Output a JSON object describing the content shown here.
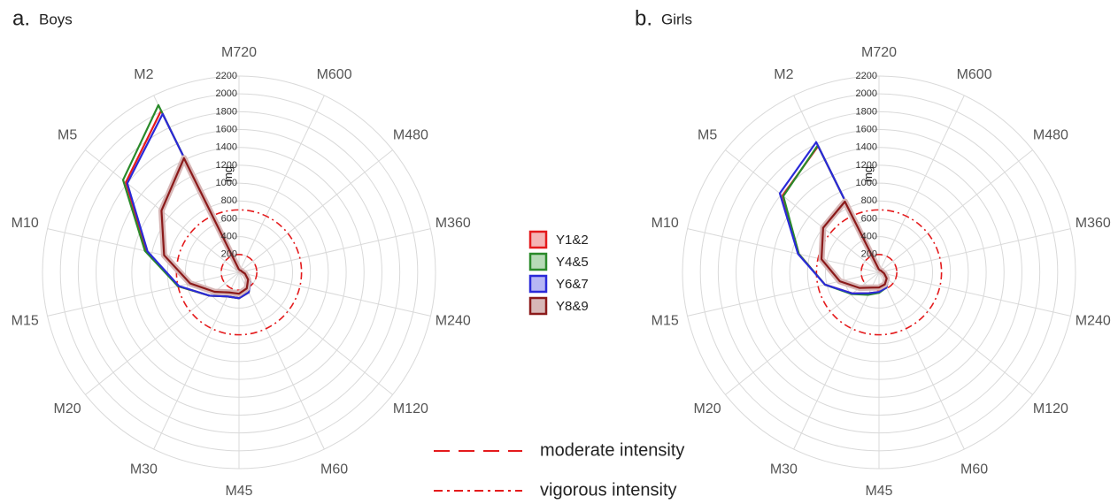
{
  "chart_data": [
    {
      "type": "radar",
      "panel": "a.",
      "title": "Boys",
      "unit": "mg",
      "categories": [
        "M720",
        "M600",
        "M480",
        "M360",
        "M240",
        "M120",
        "M60",
        "M45",
        "M30",
        "M20",
        "M15",
        "M10",
        "M5",
        "M2"
      ],
      "rlim": [
        0,
        2200
      ],
      "ticks": [
        200,
        400,
        600,
        800,
        1000,
        1200,
        1400,
        1600,
        1800,
        2000,
        2200
      ],
      "grid": true,
      "series": [
        {
          "name": "Y1&2",
          "color": "#e41a1c",
          "values": [
            30,
            28,
            35,
            40,
            80,
            160,
            250,
            290,
            300,
            420,
            700,
            1060,
            1620,
            2010
          ]
        },
        {
          "name": "Y4&5",
          "color": "#2a8a2a",
          "values": [
            30,
            28,
            35,
            40,
            80,
            160,
            250,
            290,
            300,
            420,
            700,
            1080,
            1660,
            2080
          ]
        },
        {
          "name": "Y6&7",
          "color": "#2a2ad8",
          "values": [
            30,
            28,
            35,
            40,
            80,
            160,
            250,
            290,
            300,
            420,
            690,
            1050,
            1600,
            1970
          ]
        },
        {
          "name": "Y8&9",
          "color": "#8b1a1a",
          "values": [
            30,
            25,
            30,
            35,
            70,
            130,
            200,
            240,
            250,
            350,
            560,
            860,
            1110,
            1420
          ]
        }
      ],
      "reference_lines": [
        {
          "name": "moderate intensity",
          "value": 200,
          "style": "dashed"
        },
        {
          "name": "vigorous intensity",
          "value": 700,
          "style": "dashdot"
        }
      ]
    },
    {
      "type": "radar",
      "panel": "b.",
      "title": "Girls",
      "unit": "mg",
      "categories": [
        "M720",
        "M600",
        "M480",
        "M360",
        "M240",
        "M120",
        "M60",
        "M45",
        "M30",
        "M20",
        "M15",
        "M10",
        "M5",
        "M2"
      ],
      "rlim": [
        0,
        2200
      ],
      "ticks": [
        200,
        400,
        600,
        800,
        1000,
        1200,
        1400,
        1600,
        1800,
        2000,
        2200
      ],
      "grid": true,
      "series": [
        {
          "name": "Y1&2",
          "color": "#e41a1c",
          "values": [
            30,
            28,
            35,
            40,
            80,
            130,
            190,
            220,
            260,
            380,
            620,
            920,
            1380,
            1570
          ]
        },
        {
          "name": "Y4&5",
          "color": "#2a8a2a",
          "values": [
            30,
            28,
            35,
            40,
            80,
            130,
            190,
            230,
            280,
            390,
            620,
            920,
            1370,
            1580
          ]
        },
        {
          "name": "Y6&7",
          "color": "#2a2ad8",
          "values": [
            30,
            28,
            35,
            40,
            80,
            130,
            190,
            220,
            260,
            380,
            620,
            930,
            1420,
            1620
          ]
        },
        {
          "name": "Y8&9",
          "color": "#8b1a1a",
          "values": [
            30,
            25,
            30,
            35,
            60,
            110,
            150,
            170,
            190,
            280,
            450,
            660,
            800,
            880
          ]
        }
      ],
      "reference_lines": [
        {
          "name": "moderate intensity",
          "value": 200,
          "style": "dashed"
        },
        {
          "name": "vigorous intensity",
          "value": 700,
          "style": "dashdot"
        }
      ]
    }
  ],
  "legend": {
    "items": [
      {
        "label": "Y1&2",
        "color": "#e41a1c",
        "fill": "#f4b4b4"
      },
      {
        "label": "Y4&5",
        "color": "#2a8a2a",
        "fill": "#b6dab6"
      },
      {
        "label": "Y6&7",
        "color": "#2a2ad8",
        "fill": "#b6b6f4"
      },
      {
        "label": "Y8&9",
        "color": "#8b1a1a",
        "fill": "#d7b7b7"
      }
    ],
    "line_items": [
      {
        "label": "moderate intensity",
        "style": "dashed",
        "color": "#e41a1c"
      },
      {
        "label": "vigorous intensity",
        "style": "dashdot",
        "color": "#e41a1c"
      }
    ]
  }
}
